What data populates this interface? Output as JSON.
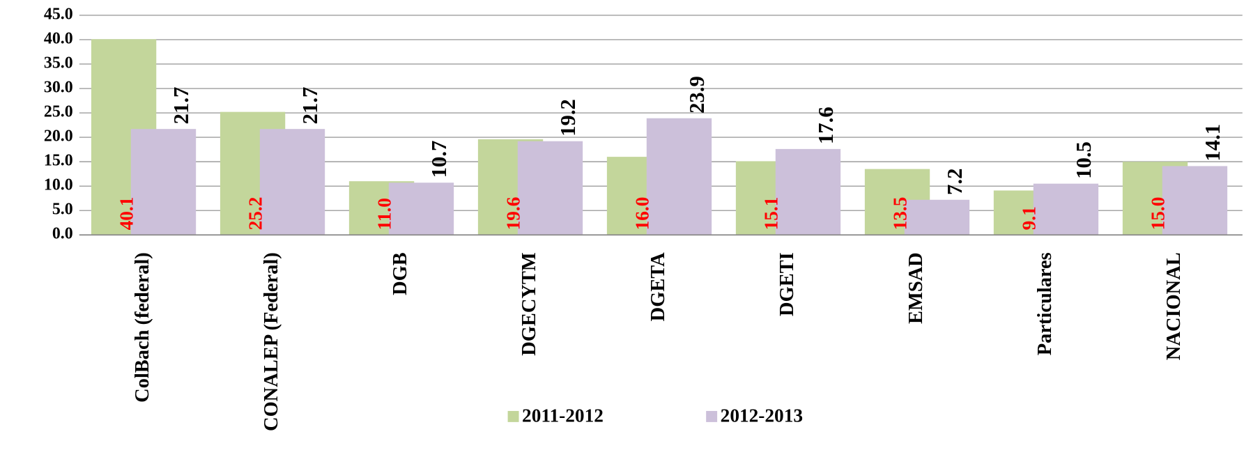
{
  "chart_data": {
    "type": "bar",
    "categories": [
      "ColBach (federal)",
      "CONALEP (Federal)",
      "DGB",
      "DGECYTM",
      "DGETA",
      "DGETI",
      "EMSAD",
      "Particulares",
      "NACIONAL"
    ],
    "series": [
      {
        "name": "2011-2012",
        "color": "#c3d69b",
        "label_color": "#ff0000",
        "values": [
          40.1,
          25.2,
          11.0,
          19.6,
          16.0,
          15.1,
          13.5,
          9.1,
          15.0
        ],
        "value_labels": [
          "40.1",
          "25.2",
          "11.0",
          "19.6",
          "16.0",
          "15.1",
          "13.5",
          "9.1",
          "15.0"
        ]
      },
      {
        "name": "2012-2013",
        "color": "#ccc0da",
        "label_color": "#000000",
        "values": [
          21.7,
          21.7,
          10.7,
          19.2,
          23.9,
          17.6,
          7.2,
          10.5,
          14.1
        ],
        "value_labels": [
          "21.7",
          "21.7",
          "10.7",
          "19.2",
          "23.9",
          "17.6",
          "7.2",
          "10.5",
          "14.1"
        ]
      }
    ],
    "ylim": [
      0,
      45
    ],
    "yticks": [
      {
        "value": 0,
        "label": "0.0"
      },
      {
        "value": 5,
        "label": "5.0"
      },
      {
        "value": 10,
        "label": "10.0"
      },
      {
        "value": 15,
        "label": "15.0"
      },
      {
        "value": 20,
        "label": "20.0"
      },
      {
        "value": 25,
        "label": "25.0"
      },
      {
        "value": 30,
        "label": "30.0"
      },
      {
        "value": 35,
        "label": "35.0"
      },
      {
        "value": 40,
        "label": "40.0"
      },
      {
        "value": 45,
        "label": "45.0"
      }
    ],
    "grid": true,
    "legend": "bottom"
  }
}
